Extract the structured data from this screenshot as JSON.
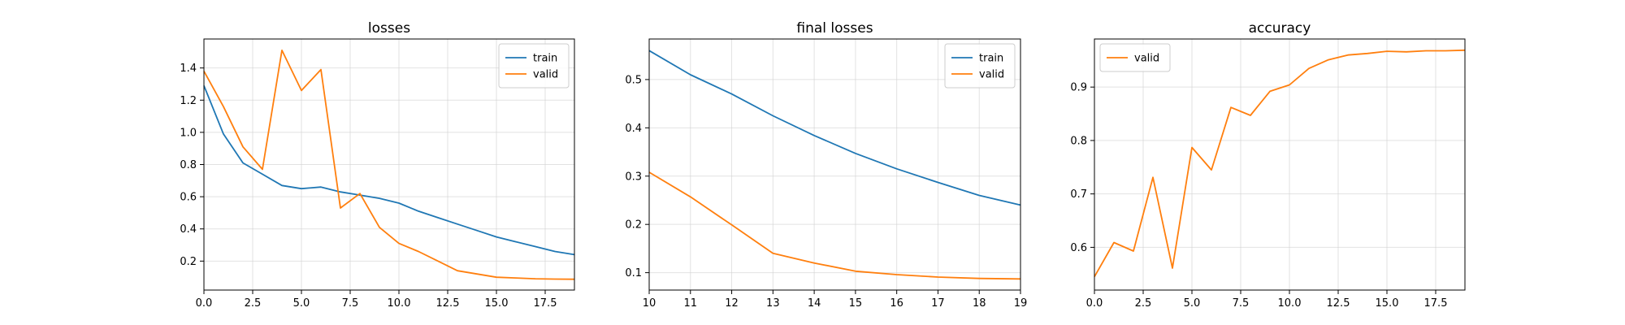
{
  "colors": {
    "train": "#1f77b4",
    "valid": "#ff7f0e"
  },
  "chart_data": [
    {
      "type": "line",
      "title": "losses",
      "xlabel": "",
      "ylabel": "",
      "xlim": [
        0,
        19
      ],
      "ylim": [
        0.02,
        1.58
      ],
      "xticks": [
        0.0,
        2.5,
        5.0,
        7.5,
        10.0,
        12.5,
        15.0,
        17.5
      ],
      "xtick_labels": [
        "0.0",
        "2.5",
        "5.0",
        "7.5",
        "10.0",
        "12.5",
        "15.0",
        "17.5"
      ],
      "yticks": [
        0.2,
        0.4,
        0.6,
        0.8,
        1.0,
        1.2,
        1.4
      ],
      "ytick_labels": [
        "0.2",
        "0.4",
        "0.6",
        "0.8",
        "1.0",
        "1.2",
        "1.4"
      ],
      "grid": true,
      "legend": "upper-right",
      "x": [
        0,
        1,
        2,
        3,
        4,
        5,
        6,
        7,
        8,
        9,
        10,
        11,
        12,
        13,
        14,
        15,
        16,
        17,
        18,
        19
      ],
      "series": [
        {
          "name": "train",
          "color": "#1f77b4",
          "values": [
            1.29,
            0.99,
            0.81,
            0.74,
            0.67,
            0.65,
            0.66,
            0.63,
            0.61,
            0.59,
            0.56,
            0.51,
            0.47,
            0.43,
            0.39,
            0.35,
            0.32,
            0.29,
            0.26,
            0.24
          ]
        },
        {
          "name": "valid",
          "color": "#ff7f0e",
          "values": [
            1.38,
            1.16,
            0.91,
            0.77,
            1.51,
            1.26,
            1.39,
            0.53,
            0.62,
            0.41,
            0.31,
            0.26,
            0.2,
            0.14,
            0.12,
            0.1,
            0.095,
            0.09,
            0.088,
            0.087
          ]
        }
      ]
    },
    {
      "type": "line",
      "title": "final losses",
      "xlabel": "",
      "ylabel": "",
      "xlim": [
        10,
        19
      ],
      "ylim": [
        0.064,
        0.584
      ],
      "xticks": [
        10,
        11,
        12,
        13,
        14,
        15,
        16,
        17,
        18,
        19
      ],
      "xtick_labels": [
        "10",
        "11",
        "12",
        "13",
        "14",
        "15",
        "16",
        "17",
        "18",
        "19"
      ],
      "yticks": [
        0.1,
        0.2,
        0.3,
        0.4,
        0.5
      ],
      "ytick_labels": [
        "0.1",
        "0.2",
        "0.3",
        "0.4",
        "0.5"
      ],
      "grid": true,
      "legend": "upper-right",
      "x": [
        10,
        11,
        12,
        13,
        14,
        15,
        16,
        17,
        18,
        19
      ],
      "series": [
        {
          "name": "train",
          "color": "#1f77b4",
          "values": [
            0.56,
            0.51,
            0.47,
            0.425,
            0.384,
            0.347,
            0.315,
            0.287,
            0.26,
            0.24
          ]
        },
        {
          "name": "valid",
          "color": "#ff7f0e",
          "values": [
            0.308,
            0.257,
            0.199,
            0.14,
            0.12,
            0.103,
            0.096,
            0.091,
            0.088,
            0.087
          ]
        }
      ]
    },
    {
      "type": "line",
      "title": "accuracy",
      "xlabel": "",
      "ylabel": "",
      "xlim": [
        0,
        19
      ],
      "ylim": [
        0.52,
        0.99
      ],
      "xticks": [
        0.0,
        2.5,
        5.0,
        7.5,
        10.0,
        12.5,
        15.0,
        17.5
      ],
      "xtick_labels": [
        "0.0",
        "2.5",
        "5.0",
        "7.5",
        "10.0",
        "12.5",
        "15.0",
        "17.5"
      ],
      "yticks": [
        0.6,
        0.7,
        0.8,
        0.9
      ],
      "ytick_labels": [
        "0.6",
        "0.7",
        "0.8",
        "0.9"
      ],
      "grid": true,
      "legend": "upper-left",
      "x": [
        0,
        1,
        2,
        3,
        4,
        5,
        6,
        7,
        8,
        9,
        10,
        11,
        12,
        13,
        14,
        15,
        16,
        17,
        18,
        19
      ],
      "series": [
        {
          "name": "valid",
          "color": "#ff7f0e",
          "values": [
            0.545,
            0.609,
            0.593,
            0.731,
            0.561,
            0.787,
            0.745,
            0.862,
            0.847,
            0.892,
            0.904,
            0.935,
            0.951,
            0.96,
            0.963,
            0.967,
            0.966,
            0.968,
            0.968,
            0.969
          ]
        }
      ]
    }
  ]
}
